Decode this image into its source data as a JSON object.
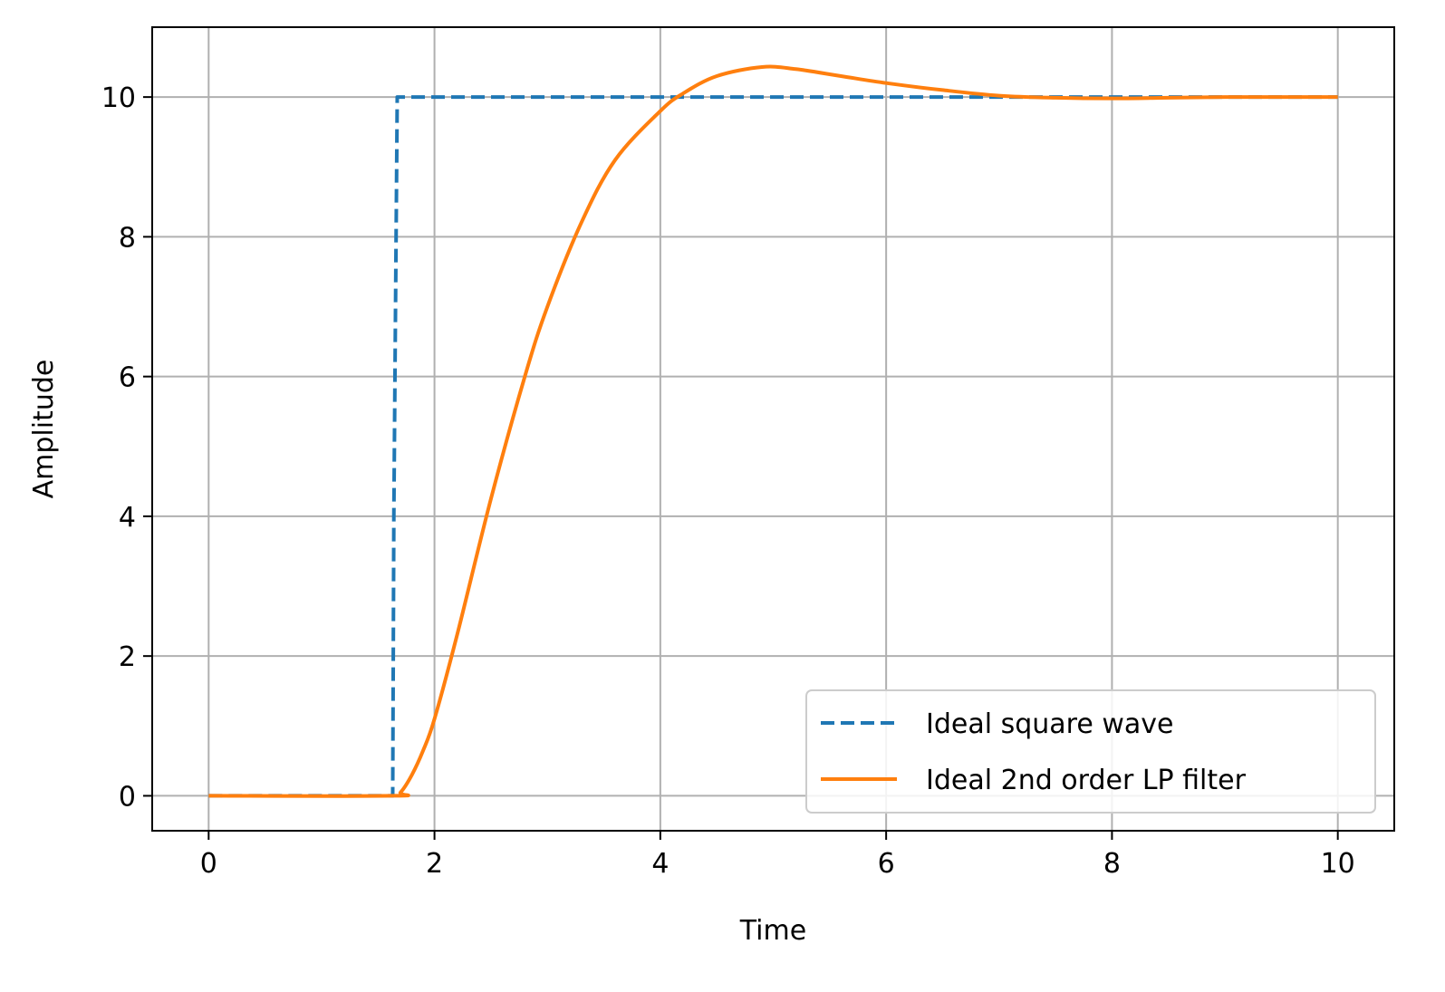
{
  "chart_data": {
    "type": "line",
    "xlabel": "Time",
    "ylabel": "Amplitude",
    "xlim": [
      -0.5,
      10.5
    ],
    "ylim": [
      -0.5,
      11.0
    ],
    "xticks": [
      0,
      2,
      4,
      6,
      8,
      10
    ],
    "yticks": [
      0,
      2,
      4,
      6,
      8,
      10
    ],
    "grid": true,
    "legend_position": "lower-right",
    "series": [
      {
        "name": "Ideal square wave",
        "color": "#1f77b4",
        "style": "dashed",
        "x": [
          0,
          1.63,
          1.64,
          1.66,
          1.67,
          10
        ],
        "y": [
          0,
          0,
          4.0,
          8.0,
          10,
          10
        ]
      },
      {
        "name": "Ideal 2nd order LP filter",
        "color": "#ff7f0e",
        "style": "solid",
        "x": [
          0,
          1.63,
          1.7,
          1.8,
          1.9,
          2.0,
          2.2,
          2.5,
          2.8,
          3.0,
          3.3,
          3.6,
          4.0,
          4.2,
          4.5,
          4.9,
          5.2,
          5.6,
          6.0,
          6.5,
          7.0,
          7.5,
          8.0,
          8.5,
          9.0,
          9.5,
          10.0
        ],
        "y": [
          0,
          0,
          0.05,
          0.3,
          0.65,
          1.1,
          2.3,
          4.25,
          6.0,
          7.0,
          8.2,
          9.1,
          9.8,
          10.05,
          10.3,
          10.43,
          10.4,
          10.3,
          10.2,
          10.1,
          10.02,
          9.99,
          9.98,
          9.99,
          10.0,
          10.0,
          10.0
        ]
      }
    ]
  }
}
